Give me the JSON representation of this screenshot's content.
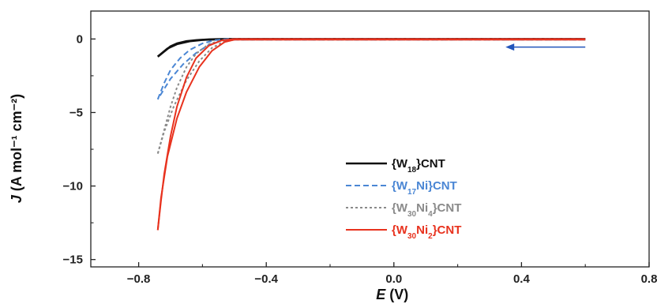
{
  "chart_data": {
    "type": "line",
    "xlabel": {
      "main": "E",
      "unit": " (V)"
    },
    "ylabel": {
      "main": "J",
      "unit": " (A mol⁻¹ cm⁻²)"
    },
    "xlim": [
      -0.95,
      0.8
    ],
    "ylim": [
      -15.5,
      1.9
    ],
    "xticks": [
      -0.8,
      -0.4,
      0.0,
      0.4,
      0.8
    ],
    "xtick_labels": [
      "−0.8",
      "−0.4",
      "0.0",
      "0.4",
      "0.8"
    ],
    "yticks": [
      0,
      -5,
      -10,
      -15
    ],
    "ytick_labels": [
      "0",
      "−5",
      "−10",
      "−15"
    ],
    "grid": false,
    "legend_position": "lower-center",
    "scan_arrow": {
      "from_x": 0.6,
      "to_x": 0.35,
      "y": -0.55,
      "color": "#2255bb"
    },
    "series": [
      {
        "name": "{W18}CNT",
        "label_parts": [
          [
            "{W",
            ""
          ],
          [
            "18",
            "sub"
          ],
          [
            "}CNT",
            ""
          ]
        ],
        "color": "#111111",
        "dash": "solid",
        "width": 2.6,
        "forward": [
          [
            -0.74,
            -1.2
          ],
          [
            -0.72,
            -0.85
          ],
          [
            -0.7,
            -0.5
          ],
          [
            -0.68,
            -0.3
          ],
          [
            -0.65,
            -0.15
          ],
          [
            -0.62,
            -0.08
          ],
          [
            -0.58,
            -0.03
          ],
          [
            -0.55,
            -0.01
          ],
          [
            -0.5,
            0.0
          ],
          [
            0.0,
            0.0
          ],
          [
            0.6,
            0.0
          ]
        ],
        "reverse": [
          [
            0.6,
            0.0
          ],
          [
            0.0,
            0.0
          ],
          [
            -0.5,
            0.0
          ],
          [
            -0.55,
            -0.02
          ],
          [
            -0.6,
            -0.06
          ],
          [
            -0.64,
            -0.15
          ],
          [
            -0.68,
            -0.35
          ],
          [
            -0.71,
            -0.65
          ],
          [
            -0.74,
            -1.2
          ]
        ]
      },
      {
        "name": "{W17Ni}CNT",
        "label_parts": [
          [
            "{W",
            ""
          ],
          [
            "17",
            "sub"
          ],
          [
            "Ni}CNT",
            ""
          ]
        ],
        "color": "#4a86d4",
        "dash": "7,4",
        "width": 2.0,
        "forward": [
          [
            -0.74,
            -4.1
          ],
          [
            -0.72,
            -3.0
          ],
          [
            -0.7,
            -2.1
          ],
          [
            -0.67,
            -1.3
          ],
          [
            -0.64,
            -0.75
          ],
          [
            -0.6,
            -0.3
          ],
          [
            -0.56,
            -0.08
          ],
          [
            -0.52,
            0.0
          ],
          [
            0.0,
            0.0
          ],
          [
            0.6,
            0.0
          ]
        ],
        "reverse": [
          [
            0.6,
            -0.05
          ],
          [
            0.0,
            -0.05
          ],
          [
            -0.5,
            -0.05
          ],
          [
            -0.54,
            -0.12
          ],
          [
            -0.58,
            -0.4
          ],
          [
            -0.62,
            -0.95
          ],
          [
            -0.66,
            -1.7
          ],
          [
            -0.7,
            -2.7
          ],
          [
            -0.74,
            -4.1
          ]
        ]
      },
      {
        "name": "{W30Ni4}CNT",
        "label_parts": [
          [
            "{W",
            ""
          ],
          [
            "30",
            "sub"
          ],
          [
            "Ni",
            ""
          ],
          [
            "4",
            "sub"
          ],
          [
            "}CNT",
            ""
          ]
        ],
        "color": "#8a8a8a",
        "dash": "3,3",
        "width": 2.0,
        "forward": [
          [
            -0.74,
            -7.8
          ],
          [
            -0.72,
            -6.2
          ],
          [
            -0.7,
            -4.6
          ],
          [
            -0.68,
            -3.3
          ],
          [
            -0.65,
            -1.9
          ],
          [
            -0.62,
            -1.0
          ],
          [
            -0.58,
            -0.35
          ],
          [
            -0.54,
            -0.08
          ],
          [
            -0.5,
            0.0
          ],
          [
            0.0,
            0.0
          ],
          [
            0.6,
            0.0
          ]
        ],
        "reverse": [
          [
            0.6,
            -0.05
          ],
          [
            0.0,
            -0.05
          ],
          [
            -0.5,
            -0.05
          ],
          [
            -0.53,
            -0.15
          ],
          [
            -0.57,
            -0.6
          ],
          [
            -0.61,
            -1.5
          ],
          [
            -0.65,
            -2.8
          ],
          [
            -0.69,
            -4.6
          ],
          [
            -0.72,
            -6.3
          ],
          [
            -0.74,
            -7.8
          ]
        ]
      },
      {
        "name": "{W30Ni2}CNT",
        "label_parts": [
          [
            "{W",
            ""
          ],
          [
            "30",
            "sub"
          ],
          [
            "Ni",
            ""
          ],
          [
            "2",
            "sub"
          ],
          [
            "}CNT",
            ""
          ]
        ],
        "color": "#e8321e",
        "dash": "solid",
        "width": 2.0,
        "forward": [
          [
            -0.74,
            -13.0
          ],
          [
            -0.73,
            -11.0
          ],
          [
            -0.72,
            -9.2
          ],
          [
            -0.7,
            -6.6
          ],
          [
            -0.68,
            -4.6
          ],
          [
            -0.65,
            -2.6
          ],
          [
            -0.62,
            -1.3
          ],
          [
            -0.58,
            -0.45
          ],
          [
            -0.54,
            -0.1
          ],
          [
            -0.5,
            0.0
          ],
          [
            0.0,
            0.0
          ],
          [
            0.6,
            0.0
          ]
        ],
        "reverse": [
          [
            0.6,
            -0.05
          ],
          [
            0.0,
            -0.05
          ],
          [
            -0.5,
            -0.05
          ],
          [
            -0.53,
            -0.2
          ],
          [
            -0.57,
            -0.8
          ],
          [
            -0.61,
            -1.9
          ],
          [
            -0.65,
            -3.6
          ],
          [
            -0.68,
            -5.4
          ],
          [
            -0.71,
            -8.0
          ],
          [
            -0.73,
            -10.8
          ],
          [
            -0.74,
            -13.0
          ]
        ]
      }
    ]
  }
}
